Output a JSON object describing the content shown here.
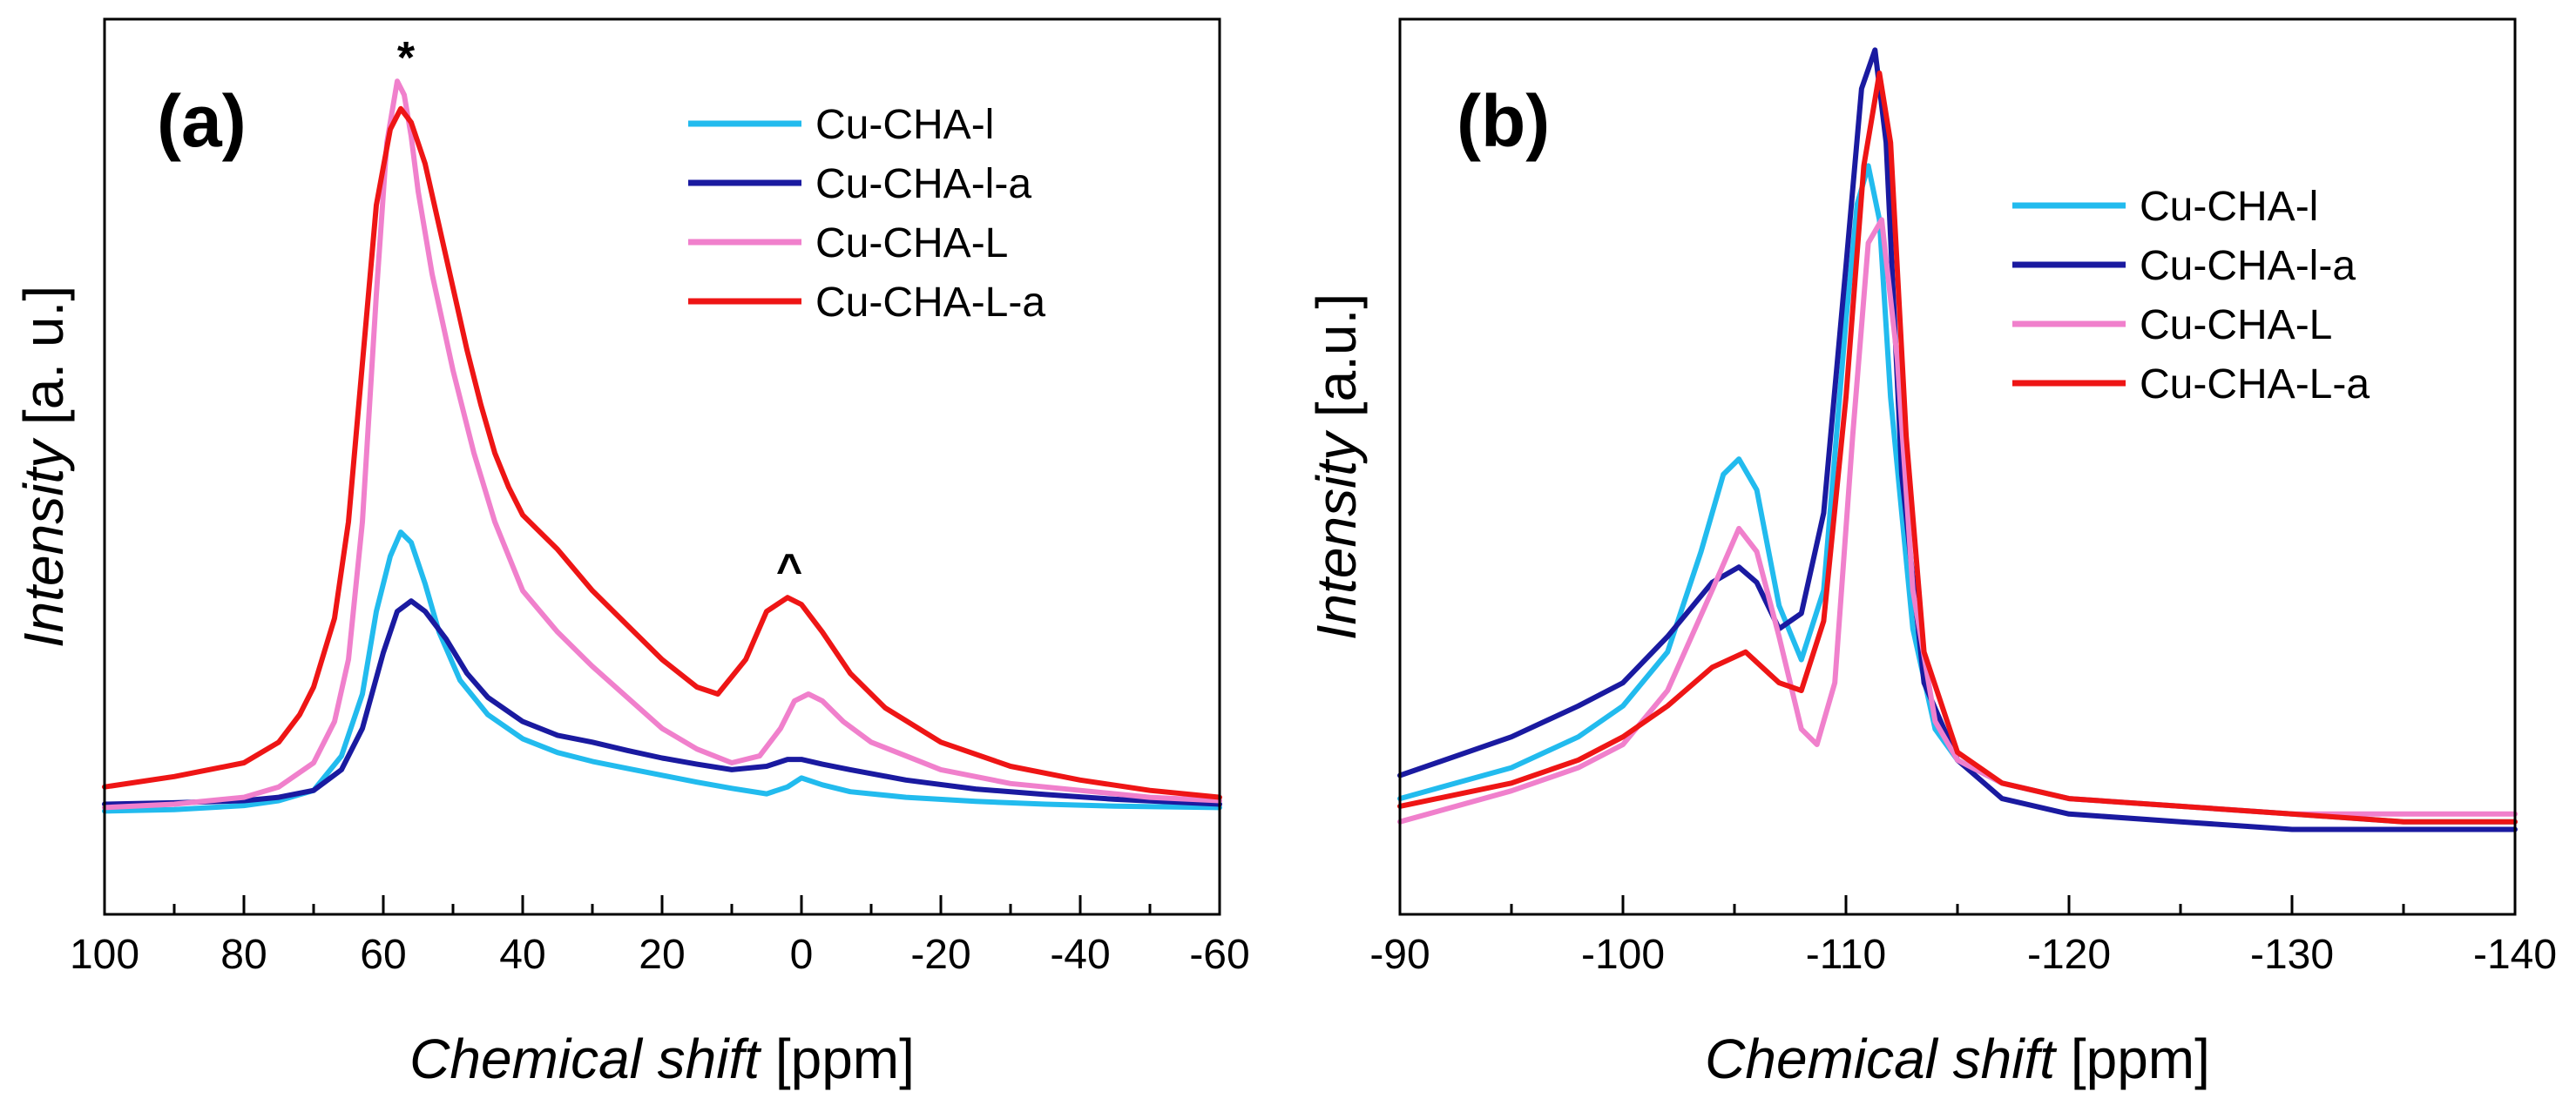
{
  "chart_data": [
    {
      "type": "line",
      "panel_label": "(a)",
      "xlabel": "Chemical shift",
      "xlabel_unit": "[ppm]",
      "ylabel": "Intensity",
      "ylabel_unit": "[a. u.]",
      "xlim": [
        100,
        -60
      ],
      "ylim": [
        -0.15,
        1.15
      ],
      "xticks": [
        100,
        80,
        60,
        40,
        20,
        0,
        -20,
        -40,
        -60
      ],
      "xtick_labels": [
        "100",
        "80",
        "60",
        "40",
        "20",
        "0",
        "-20",
        "-40",
        "-60"
      ],
      "legend_position": "top-right",
      "annotations": [
        {
          "text": "*",
          "x": 57.5,
          "y": 1.1
        },
        {
          "text": "^",
          "x": 2,
          "y": 0.37
        }
      ],
      "series": [
        {
          "name": "Cu-CHA-l",
          "color": "#22bbee",
          "x": [
            100,
            90,
            80,
            75,
            70,
            66,
            63,
            61,
            59,
            57.5,
            56,
            54,
            52,
            49,
            45,
            40,
            35,
            30,
            25,
            20,
            15,
            10,
            5,
            2,
            0,
            -3,
            -7,
            -15,
            -25,
            -35,
            -45,
            -60
          ],
          "y": [
            0.0,
            0.002,
            0.008,
            0.015,
            0.03,
            0.08,
            0.17,
            0.29,
            0.37,
            0.405,
            0.39,
            0.33,
            0.26,
            0.19,
            0.14,
            0.105,
            0.085,
            0.072,
            0.062,
            0.052,
            0.042,
            0.033,
            0.025,
            0.035,
            0.048,
            0.038,
            0.028,
            0.02,
            0.014,
            0.01,
            0.007,
            0.005
          ]
        },
        {
          "name": "Cu-CHA-l-a",
          "color": "#1a1aa0",
          "x": [
            100,
            90,
            80,
            75,
            70,
            66,
            63,
            60,
            58,
            56,
            54,
            51,
            48,
            45,
            40,
            35,
            30,
            25,
            20,
            15,
            10,
            5,
            2,
            0,
            -3,
            -7,
            -15,
            -25,
            -35,
            -45,
            -60
          ],
          "y": [
            0.01,
            0.012,
            0.015,
            0.02,
            0.03,
            0.06,
            0.12,
            0.23,
            0.29,
            0.305,
            0.29,
            0.25,
            0.2,
            0.165,
            0.13,
            0.11,
            0.1,
            0.088,
            0.077,
            0.068,
            0.06,
            0.065,
            0.075,
            0.075,
            0.068,
            0.06,
            0.045,
            0.032,
            0.024,
            0.017,
            0.01
          ]
        },
        {
          "name": "Cu-CHA-L",
          "color": "#f080cc",
          "x": [
            100,
            90,
            80,
            75,
            70,
            67,
            65,
            63,
            61,
            59.5,
            58,
            57,
            56,
            55,
            53,
            50,
            47,
            44,
            40,
            35,
            30,
            25,
            20,
            15,
            10,
            6,
            3,
            1,
            -1,
            -3,
            -6,
            -10,
            -15,
            -20,
            -30,
            -40,
            -50,
            -60
          ],
          "y": [
            0.005,
            0.01,
            0.02,
            0.035,
            0.07,
            0.13,
            0.22,
            0.42,
            0.75,
            0.97,
            1.06,
            1.04,
            0.98,
            0.9,
            0.78,
            0.64,
            0.52,
            0.42,
            0.32,
            0.26,
            0.21,
            0.165,
            0.12,
            0.09,
            0.07,
            0.08,
            0.12,
            0.16,
            0.17,
            0.16,
            0.13,
            0.1,
            0.08,
            0.06,
            0.04,
            0.03,
            0.02,
            0.015
          ]
        },
        {
          "name": "Cu-CHA-L-a",
          "color": "#ee1515",
          "x": [
            100,
            90,
            80,
            75,
            72,
            70,
            67,
            65,
            63,
            61,
            59,
            57.5,
            56,
            54,
            52,
            50,
            48,
            46,
            44,
            42,
            40,
            38,
            35,
            30,
            25,
            20,
            15,
            12,
            8,
            5,
            2,
            0,
            -3,
            -7,
            -12,
            -20,
            -30,
            -40,
            -50,
            -60
          ],
          "y": [
            0.035,
            0.05,
            0.07,
            0.1,
            0.14,
            0.18,
            0.28,
            0.42,
            0.65,
            0.88,
            0.99,
            1.02,
            1.0,
            0.94,
            0.85,
            0.76,
            0.67,
            0.59,
            0.52,
            0.47,
            0.43,
            0.41,
            0.38,
            0.32,
            0.27,
            0.22,
            0.18,
            0.17,
            0.22,
            0.29,
            0.31,
            0.3,
            0.26,
            0.2,
            0.15,
            0.1,
            0.065,
            0.045,
            0.03,
            0.02
          ]
        }
      ]
    },
    {
      "type": "line",
      "panel_label": "(b)",
      "xlabel": "Chemical shift",
      "xlabel_unit": "[ppm]",
      "ylabel": "Intensity",
      "ylabel_unit": "[a.u.]",
      "xlim": [
        -90,
        -140
      ],
      "ylim": [
        -0.12,
        1.04
      ],
      "xticks": [
        -90,
        -100,
        -110,
        -120,
        -130,
        -140
      ],
      "xtick_labels": [
        "-90",
        "-100",
        "-110",
        "-120",
        "-130",
        "-140"
      ],
      "legend_position": "top-right",
      "annotations": [],
      "series": [
        {
          "name": "Cu-CHA-l",
          "color": "#22bbee",
          "x": [
            -90,
            -95,
            -98,
            -100,
            -102,
            -103.5,
            -104.5,
            -105.2,
            -106,
            -107,
            -108,
            -109,
            -110,
            -110.5,
            -111,
            -111.5,
            -112,
            -113,
            -114,
            -115,
            -117,
            -120,
            -125,
            -130,
            -135,
            -140
          ],
          "y": [
            0.03,
            0.07,
            0.11,
            0.15,
            0.22,
            0.35,
            0.45,
            0.47,
            0.43,
            0.28,
            0.21,
            0.3,
            0.65,
            0.8,
            0.85,
            0.78,
            0.55,
            0.25,
            0.12,
            0.08,
            0.05,
            0.03,
            0.02,
            0.01,
            0.0,
            0.0
          ]
        },
        {
          "name": "Cu-CHA-l-a",
          "color": "#1a1aa0",
          "x": [
            -90,
            -95,
            -98,
            -100,
            -102,
            -104,
            -105.2,
            -106,
            -107,
            -108,
            -109,
            -110,
            -110.7,
            -111.3,
            -111.8,
            -112.5,
            -113.5,
            -115,
            -117,
            -120,
            -125,
            -130,
            -135,
            -140
          ],
          "y": [
            0.06,
            0.11,
            0.15,
            0.18,
            0.24,
            0.31,
            0.33,
            0.31,
            0.25,
            0.27,
            0.4,
            0.72,
            0.95,
            1.0,
            0.88,
            0.45,
            0.18,
            0.08,
            0.03,
            0.01,
            0.0,
            -0.01,
            -0.01,
            -0.01
          ]
        },
        {
          "name": "Cu-CHA-L",
          "color": "#f080cc",
          "x": [
            -90,
            -95,
            -98,
            -100,
            -102,
            -104,
            -105.2,
            -106,
            -107,
            -108,
            -108.7,
            -109.5,
            -110.3,
            -111,
            -111.6,
            -112.3,
            -113,
            -114,
            -115,
            -117,
            -120,
            -125,
            -130,
            -135,
            -140
          ],
          "y": [
            0.0,
            0.04,
            0.07,
            0.1,
            0.17,
            0.3,
            0.38,
            0.35,
            0.24,
            0.12,
            0.1,
            0.18,
            0.5,
            0.75,
            0.78,
            0.6,
            0.3,
            0.13,
            0.08,
            0.05,
            0.03,
            0.02,
            0.01,
            0.01,
            0.01
          ]
        },
        {
          "name": "Cu-CHA-L-a",
          "color": "#ee1515",
          "x": [
            -90,
            -95,
            -98,
            -100,
            -102,
            -104,
            -105.5,
            -107,
            -108,
            -109,
            -110,
            -110.8,
            -111.5,
            -112,
            -112.7,
            -113.5,
            -115,
            -117,
            -120,
            -125,
            -130,
            -135,
            -140
          ],
          "y": [
            0.02,
            0.05,
            0.08,
            0.11,
            0.15,
            0.2,
            0.22,
            0.18,
            0.17,
            0.26,
            0.55,
            0.85,
            0.97,
            0.88,
            0.5,
            0.22,
            0.09,
            0.05,
            0.03,
            0.02,
            0.01,
            0.0,
            0.0
          ]
        }
      ]
    }
  ]
}
